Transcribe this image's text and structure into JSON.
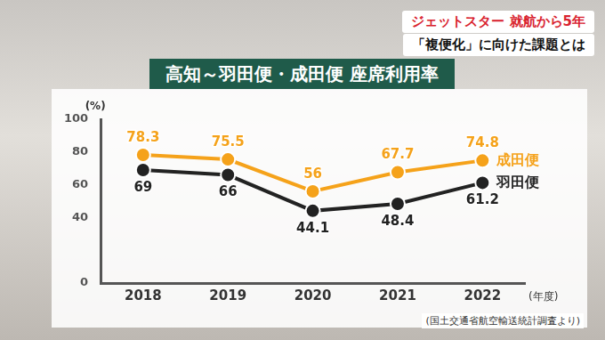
{
  "header": {
    "line1": "ジェットスター 就航から5年",
    "line2": "「複便化」に向けた課題とは"
  },
  "chart_data": {
    "type": "line",
    "title": "高知～羽田便・成田便 座席利用率",
    "y_label": "(%)",
    "x_label": "(年度)",
    "source": "(国土交通省航空輸送統計調査より)",
    "categories": [
      "2018",
      "2019",
      "2020",
      "2021",
      "2022"
    ],
    "series": [
      {
        "name": "成田便",
        "color": "#f5a21a",
        "marker": "circle",
        "values": [
          78.3,
          75.5,
          56,
          67.7,
          74.8
        ]
      },
      {
        "name": "羽田便",
        "color": "#222222",
        "marker": "circle",
        "values": [
          69,
          66,
          44.1,
          48.4,
          61.2
        ]
      }
    ],
    "ylim": [
      0,
      100
    ],
    "yticks": [
      0,
      40,
      60,
      80,
      100
    ],
    "grid": false,
    "data_labels": true
  }
}
